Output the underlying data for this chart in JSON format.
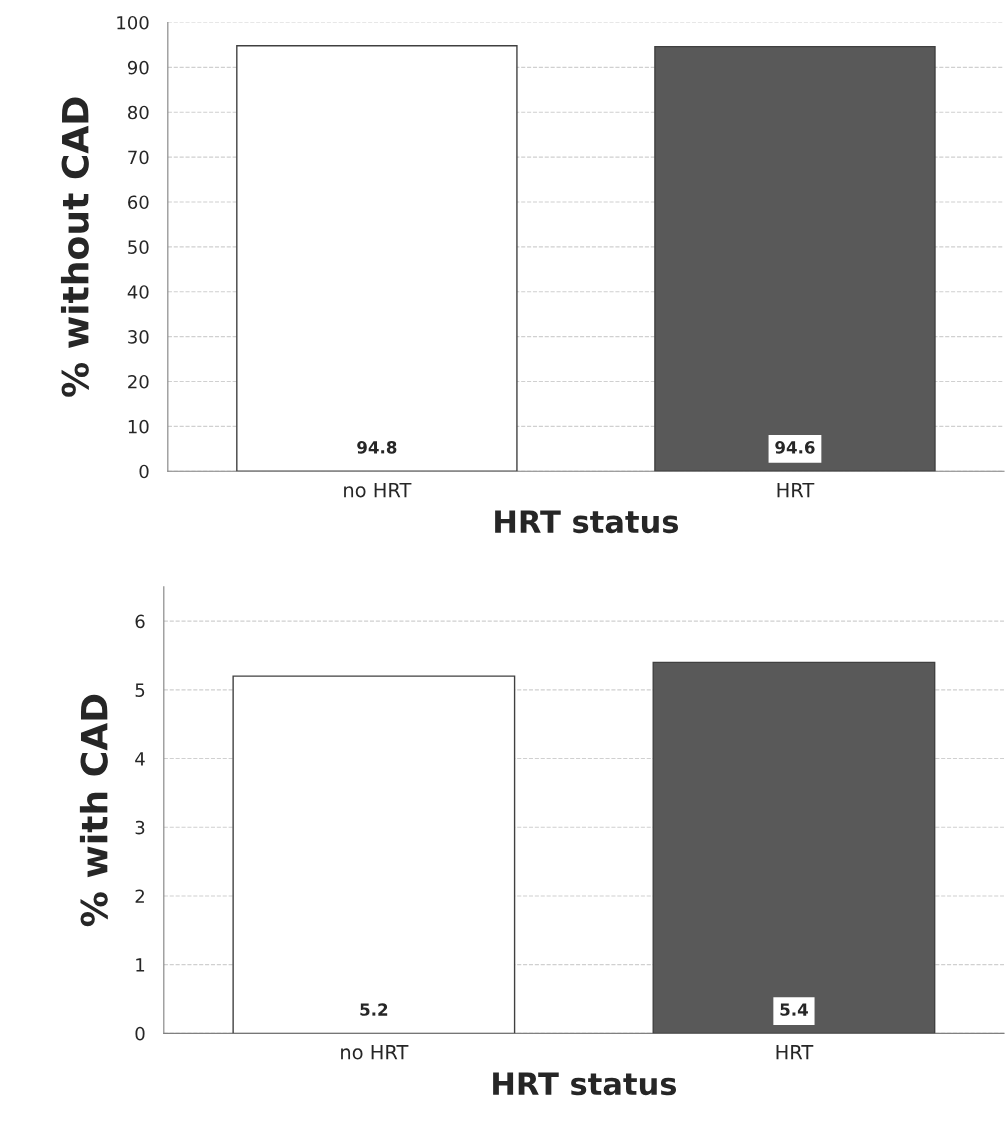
{
  "chart_data": [
    {
      "type": "bar",
      "categories": [
        "no HRT",
        "HRT"
      ],
      "values": [
        94.8,
        94.6
      ],
      "colors": [
        "#ffffff",
        "#595959"
      ],
      "xlabel": "HRT status",
      "ylabel": "% without CAD",
      "ylim": [
        0,
        100
      ],
      "yticks": [
        0,
        10,
        20,
        30,
        40,
        50,
        60,
        70,
        80,
        90,
        100
      ],
      "grid": "y",
      "legend": false,
      "data_labels": true
    },
    {
      "type": "bar",
      "categories": [
        "no HRT",
        "HRT"
      ],
      "values": [
        5.2,
        5.4
      ],
      "colors": [
        "#ffffff",
        "#595959"
      ],
      "xlabel": "HRT status",
      "ylabel": "% with CAD",
      "ylim": [
        0,
        6.5
      ],
      "yticks": [
        0,
        1,
        2,
        3,
        4,
        5,
        6
      ],
      "grid": "y",
      "legend": false,
      "data_labels": true
    }
  ]
}
